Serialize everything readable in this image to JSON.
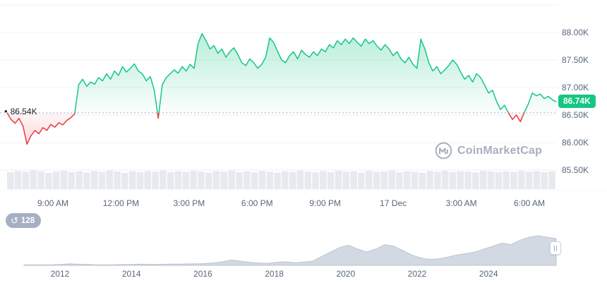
{
  "watermark": {
    "text": "CoinMarketCap"
  },
  "history_badge": {
    "count": "128",
    "icon": "↺"
  },
  "chart_data": {
    "type": "area",
    "baseline": {
      "value": 86.54,
      "label": "86.54K"
    },
    "current_price": {
      "value": 86.74,
      "label": "86.74K"
    },
    "y_axis": {
      "tick_values": [
        88.0,
        87.5,
        87.0,
        86.5,
        86.0,
        85.5
      ],
      "tick_labels": [
        "88.00K",
        "87.50K",
        "87.00K",
        "86.50K",
        "86.00K",
        "85.50K"
      ],
      "extra_gridline_value": 88.5
    },
    "x_axis": {
      "tick_labels": [
        "9:00 AM",
        "12:00 PM",
        "3:00 PM",
        "6:00 PM",
        "9:00 PM",
        "17 Dec",
        "3:00 AM",
        "6:00 AM"
      ]
    },
    "series": {
      "name": "price",
      "unit": "K",
      "values": [
        86.54,
        86.42,
        86.35,
        86.44,
        86.3,
        85.97,
        86.12,
        86.22,
        86.16,
        86.27,
        86.22,
        86.33,
        86.28,
        86.36,
        86.32,
        86.4,
        86.45,
        86.52,
        87.05,
        87.15,
        87.02,
        87.1,
        87.06,
        87.18,
        87.12,
        87.25,
        87.15,
        87.3,
        87.22,
        87.38,
        87.28,
        87.35,
        87.43,
        87.3,
        87.25,
        87.12,
        87.2,
        86.95,
        86.44,
        87.05,
        87.18,
        87.25,
        87.32,
        87.26,
        87.38,
        87.3,
        87.42,
        87.35,
        87.8,
        87.98,
        87.85,
        87.7,
        87.76,
        87.62,
        87.7,
        87.55,
        87.65,
        87.72,
        87.6,
        87.45,
        87.4,
        87.52,
        87.45,
        87.35,
        87.42,
        87.55,
        87.9,
        87.82,
        87.65,
        87.5,
        87.45,
        87.58,
        87.65,
        87.52,
        87.68,
        87.6,
        87.55,
        87.65,
        87.58,
        87.7,
        87.65,
        87.78,
        87.72,
        87.85,
        87.78,
        87.88,
        87.8,
        87.9,
        87.82,
        87.75,
        87.88,
        87.8,
        87.85,
        87.75,
        87.68,
        87.78,
        87.7,
        87.58,
        87.65,
        87.52,
        87.45,
        87.55,
        87.42,
        87.35,
        87.88,
        87.7,
        87.45,
        87.3,
        87.38,
        87.25,
        87.32,
        87.4,
        87.5,
        87.42,
        87.28,
        87.15,
        87.22,
        87.1,
        87.25,
        87.18,
        87.05,
        86.9,
        86.95,
        86.75,
        86.6,
        86.68,
        86.54,
        86.42,
        86.5,
        86.38,
        86.55,
        86.7,
        86.9,
        86.85,
        86.88,
        86.8,
        86.84,
        86.78,
        86.74
      ]
    },
    "volume": [
      0.85,
      0.92,
      0.88,
      0.95,
      0.9,
      0.82,
      0.88,
      0.93,
      0.86,
      0.9,
      0.84,
      0.91,
      0.87,
      0.94,
      0.89,
      0.83,
      0.9,
      0.86,
      0.92,
      0.88,
      0.95,
      0.85,
      0.9,
      0.87,
      0.93,
      0.89,
      0.84,
      0.91,
      0.88,
      0.94,
      0.86,
      0.9,
      0.85,
      0.92,
      0.88,
      0.83,
      0.9,
      0.87,
      0.94,
      0.89,
      0.85,
      0.91,
      0.86,
      0.93,
      0.88,
      0.9,
      0.84,
      0.92,
      0.87,
      0.89,
      0.94,
      0.85,
      0.9,
      0.88,
      0.83,
      0.91,
      0.87,
      0.93,
      0.86,
      0.9,
      0.88,
      0.84,
      0.92,
      0.89,
      0.85,
      0.9,
      0.87,
      0.93,
      0.88,
      0.91,
      0.86,
      0.9
    ],
    "navigator": {
      "values": [
        0.02,
        0.02,
        0.02,
        0.02,
        0.03,
        0.05,
        0.04,
        0.03,
        0.02,
        0.02,
        0.02,
        0.03,
        0.03,
        0.04,
        0.03,
        0.03,
        0.04,
        0.04,
        0.05,
        0.05,
        0.06,
        0.08,
        0.12,
        0.18,
        0.14,
        0.1,
        0.08,
        0.07,
        0.1,
        0.12,
        0.09,
        0.11,
        0.14,
        0.3,
        0.45,
        0.6,
        0.68,
        0.55,
        0.45,
        0.55,
        0.7,
        0.65,
        0.5,
        0.35,
        0.25,
        0.2,
        0.22,
        0.28,
        0.35,
        0.4,
        0.45,
        0.55,
        0.65,
        0.75,
        0.7,
        0.85,
        0.95,
        1.0,
        0.95,
        0.9
      ],
      "year_labels": [
        "2012",
        "2014",
        "2016",
        "2018",
        "2020",
        "2022",
        "2024"
      ]
    },
    "colors": {
      "up": "#16c784",
      "down": "#ea3943",
      "grid": "#eff2f5",
      "baseline_dash": "#a8b1c2",
      "axis_text": "#58667e",
      "volume_bar": "#e6e9ee",
      "nav_fill": "#d3d9e2",
      "nav_line": "#bcc4d0"
    }
  }
}
